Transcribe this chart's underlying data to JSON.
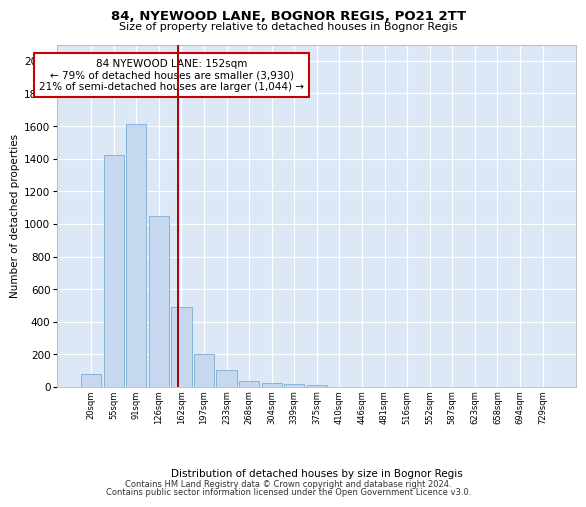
{
  "title1": "84, NYEWOOD LANE, BOGNOR REGIS, PO21 2TT",
  "title2": "Size of property relative to detached houses in Bognor Regis",
  "xlabel": "Distribution of detached houses by size in Bognor Regis",
  "ylabel": "Number of detached properties",
  "categories": [
    "20sqm",
    "55sqm",
    "91sqm",
    "126sqm",
    "162sqm",
    "197sqm",
    "233sqm",
    "268sqm",
    "304sqm",
    "339sqm",
    "375sqm",
    "410sqm",
    "446sqm",
    "481sqm",
    "516sqm",
    "552sqm",
    "587sqm",
    "623sqm",
    "658sqm",
    "694sqm",
    "729sqm"
  ],
  "values": [
    80,
    1420,
    1610,
    1050,
    490,
    205,
    105,
    38,
    25,
    20,
    15,
    0,
    0,
    0,
    0,
    0,
    0,
    0,
    0,
    0,
    0
  ],
  "bar_color": "#c5d8f0",
  "bar_edge_color": "#7aadd4",
  "vline_pos": 3.85,
  "vline_color": "#aa0000",
  "annotation_text": "84 NYEWOOD LANE: 152sqm\n← 79% of detached houses are smaller (3,930)\n21% of semi-detached houses are larger (1,044) →",
  "annotation_box_facecolor": "#ffffff",
  "annotation_box_edgecolor": "#cc0000",
  "ylim": [
    0,
    2100
  ],
  "yticks": [
    0,
    200,
    400,
    600,
    800,
    1000,
    1200,
    1400,
    1600,
    1800,
    2000
  ],
  "footer1": "Contains HM Land Registry data © Crown copyright and database right 2024.",
  "footer2": "Contains public sector information licensed under the Open Government Licence v3.0.",
  "bg_color": "#ffffff",
  "plot_bg_color": "#dce8f5"
}
